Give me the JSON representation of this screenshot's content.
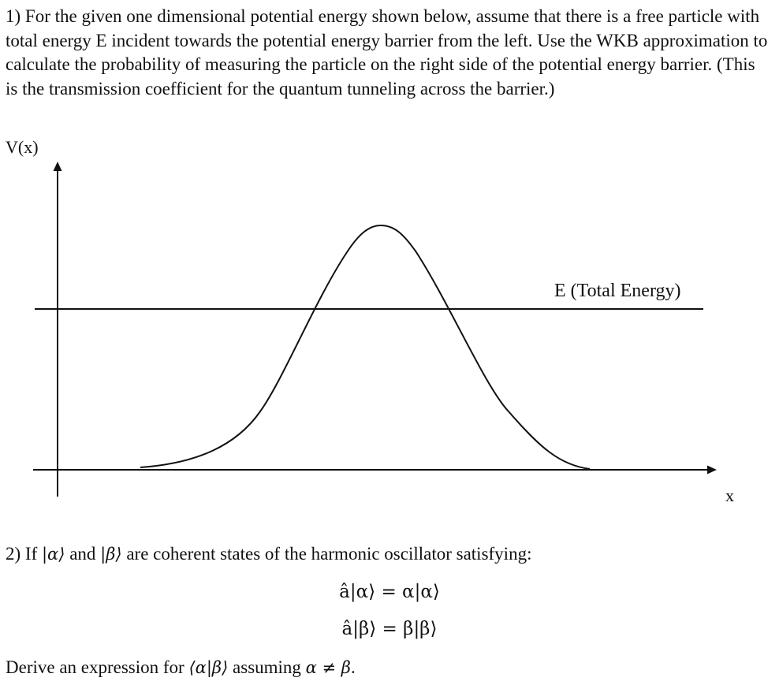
{
  "problem1": {
    "text": "1) For the given one dimensional potential energy shown below, assume that there is a free particle with total energy E incident towards the potential energy barrier from the left. Use the WKB approximation to calculate the probability of measuring the particle on the right side of the potential energy barrier. (This is the transmission coefficient for the quantum tunneling across the barrier.)"
  },
  "diagram": {
    "y_axis_label": "V(x)",
    "x_axis_label": "x",
    "energy_label": "E (Total Energy)"
  },
  "problem2": {
    "intro_prefix": "2) If ",
    "ket_alpha": "|α⟩",
    "and_word": " and ",
    "ket_beta": "|β⟩",
    "intro_suffix": " are coherent states of the harmonic oscillator satisfying:",
    "eq1": "â|α⟩ = α|α⟩",
    "eq2": "â|β⟩ = β|β⟩",
    "derive_prefix": "Derive an expression for ",
    "derive_bracket": "⟨α|β⟩",
    "derive_middle": " assuming ",
    "derive_condition": "α ≠ β",
    "derive_end": "."
  }
}
